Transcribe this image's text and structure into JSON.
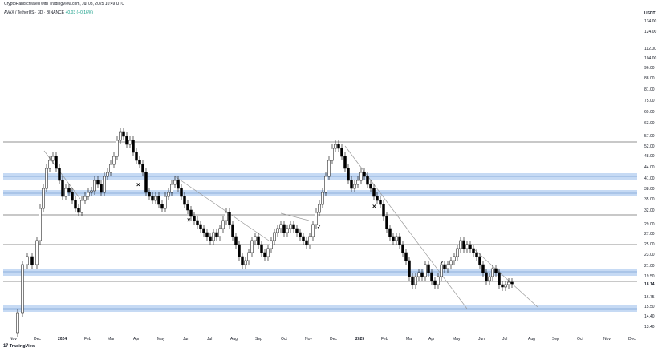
{
  "header": {
    "author_line": "CryptoRand created with TradingView.com, Jul 08, 2025 10:49 UTC"
  },
  "symbol": {
    "pair": "AVAX / TetherUS",
    "interval": "3D",
    "exchange": "BINANCE",
    "change": "+0.03 (+0.16%)"
  },
  "price_axis": {
    "currency": "USDT",
    "current_price": "18.14",
    "ticks": [
      "134.00",
      "124.00",
      "112.00",
      "104.00",
      "96.00",
      "88.00",
      "81.00",
      "75.00",
      "69.00",
      "63.00",
      "57.00",
      "52.00",
      "48.00",
      "44.00",
      "41.00",
      "38.00",
      "35.00",
      "32.00",
      "29.00",
      "27.00",
      "25.00",
      "23.00",
      "21.00",
      "19.50",
      "16.75",
      "15.50",
      "14.40",
      "13.40"
    ]
  },
  "time_axis": {
    "labels": [
      "Nov",
      "Dec",
      "2024",
      "Feb",
      "Mar",
      "Apr",
      "May",
      "Jun",
      "Jul",
      "Aug",
      "Sep",
      "Oct",
      "Nov",
      "Dec",
      "2025",
      "Feb",
      "Mar",
      "Apr",
      "May",
      "Jun",
      "Jul",
      "Aug",
      "Sep",
      "Oct",
      "Nov",
      "Dec"
    ],
    "bold_labels": [
      "2024",
      "2025"
    ]
  },
  "annotations": {
    "cross_marks": [
      "×",
      "×",
      "×"
    ],
    "check_marks": [
      "✓",
      "✓"
    ]
  },
  "branding": {
    "logo_text": "TradingView",
    "logo_mark": "17"
  },
  "colors": {
    "candle": "#000000",
    "zone": "#bcd4f2",
    "line": "#6b6b6b",
    "trend": "#9a9a9a",
    "change": "#089981"
  }
}
